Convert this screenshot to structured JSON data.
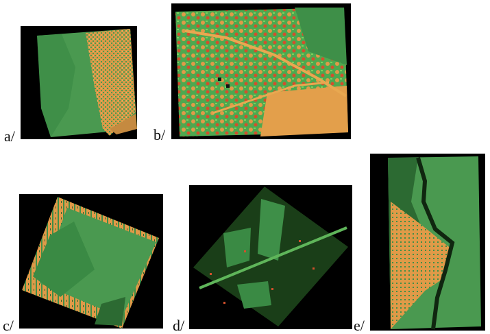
{
  "figure": {
    "panels": [
      {
        "id": "a",
        "label": "a/"
      },
      {
        "id": "b",
        "label": "b/"
      },
      {
        "id": "c",
        "label": "c/"
      },
      {
        "id": "d",
        "label": "d/"
      },
      {
        "id": "e",
        "label": "e/"
      }
    ],
    "colors": {
      "background": "#000000",
      "green": "#3f9a4c",
      "light_green": "#5fc25a",
      "dark_green": "#153a16",
      "orange": "#e3a04a",
      "red": "#d2502c"
    }
  }
}
